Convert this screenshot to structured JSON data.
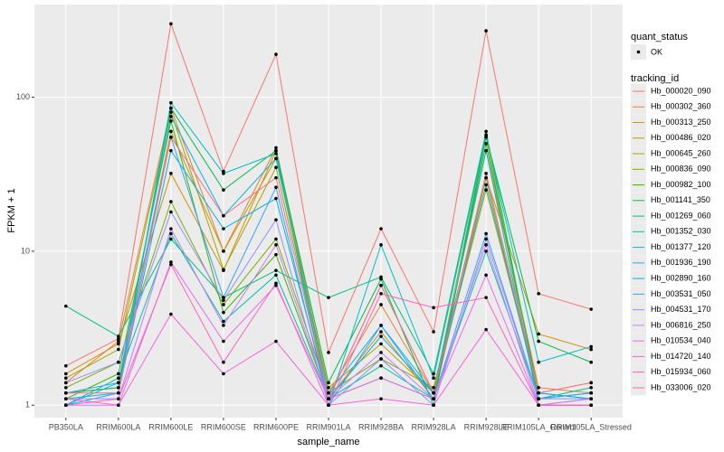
{
  "chart_data": {
    "type": "line",
    "x_label": "sample_name",
    "y_label": "FPKM + 1",
    "categories": [
      "PB350LA",
      "RRIM600LA",
      "RRIM600LE",
      "RRIM600SE",
      "RRIM600PE",
      "RRIM901LA",
      "RRIM928BA",
      "RRIM928LA",
      "RRIM928LE",
      "RRIM105LA_Control",
      "RRIM105LA_Stressed"
    ],
    "log_y": true,
    "grid": true,
    "ylim": [
      0.83,
      400
    ],
    "yticks": [
      1,
      10,
      100
    ],
    "legend_position": "right",
    "legend": {
      "shape_title": "quant_status",
      "shape_label": "OK",
      "color_title": "tracking_id"
    },
    "series": [
      {
        "name": "Hb_000020_090",
        "color": "#F8766D",
        "values": [
          1.8,
          2.7,
          300,
          33,
          190,
          2.2,
          14,
          3.0,
          270,
          5.3,
          4.2
        ]
      },
      {
        "name": "Hb_000302_360",
        "color": "#EA8331",
        "values": [
          1.4,
          2.6,
          85,
          10,
          47,
          1.2,
          4.5,
          1.2,
          45,
          1.3,
          1.2
        ]
      },
      {
        "name": "Hb_000313_250",
        "color": "#D89000",
        "values": [
          1.6,
          2.5,
          32,
          7.5,
          45,
          1.1,
          3.0,
          1.1,
          30,
          2.9,
          2.3
        ]
      },
      {
        "name": "Hb_000486_020",
        "color": "#C09B00",
        "values": [
          1.2,
          1.3,
          60,
          10,
          40,
          1.3,
          2.5,
          1.2,
          25,
          1.2,
          1.4
        ]
      },
      {
        "name": "Hb_000645_260",
        "color": "#A3A500",
        "values": [
          1.5,
          2.3,
          80,
          7.6,
          35,
          1.1,
          6.0,
          1.2,
          55,
          1.0,
          1.0
        ]
      },
      {
        "name": "Hb_000836_090",
        "color": "#7CAE00",
        "values": [
          1.3,
          1.9,
          21,
          4.5,
          12,
          1.2,
          2.0,
          1.3,
          30,
          1.1,
          1.2
        ]
      },
      {
        "name": "Hb_000982_100",
        "color": "#39B600",
        "values": [
          1.1,
          1.6,
          70,
          4.0,
          9.5,
          1.1,
          1.5,
          1.1,
          50,
          1.2,
          1.1
        ]
      },
      {
        "name": "Hb_001141_350",
        "color": "#00BB4E",
        "values": [
          1.2,
          1.3,
          85,
          25,
          45,
          1.4,
          6.6,
          1.0,
          56,
          2.6,
          1.9
        ]
      },
      {
        "name": "Hb_001269_060",
        "color": "#00BF7D",
        "values": [
          4.4,
          2.8,
          12,
          5.0,
          7.5,
          5.0,
          6.8,
          1.6,
          60,
          1.1,
          1.3
        ]
      },
      {
        "name": "Hb_001352_030",
        "color": "#00C1A3",
        "values": [
          1.0,
          1.5,
          13,
          3.5,
          7.0,
          1.1,
          1.8,
          1.1,
          10,
          1.1,
          1.2
        ]
      },
      {
        "name": "Hb_001377_120",
        "color": "#00BFC4",
        "values": [
          1.1,
          1.2,
          92,
          32,
          43,
          1.0,
          11,
          1.5,
          57,
          1.9,
          2.4
        ]
      },
      {
        "name": "Hb_001936_190",
        "color": "#00BAE0",
        "values": [
          1.0,
          1.4,
          75,
          17,
          40,
          1.2,
          3.3,
          1.2,
          45,
          1.0,
          1.1
        ]
      },
      {
        "name": "Hb_002890_160",
        "color": "#00B0F6",
        "values": [
          1.0,
          1.2,
          45,
          14,
          22,
          1.1,
          2.8,
          1.2,
          27,
          1.2,
          1.1
        ]
      },
      {
        "name": "Hb_003531_050",
        "color": "#35A2FF",
        "values": [
          1.2,
          1.4,
          55,
          5.0,
          26,
          1.0,
          3.3,
          1.1,
          13,
          1.1,
          1.2
        ]
      },
      {
        "name": "Hb_004531_170",
        "color": "#9590FF",
        "values": [
          1.4,
          1.9,
          18,
          4.8,
          16,
          1.0,
          2.0,
          1.0,
          12,
          1.1,
          1.1
        ]
      },
      {
        "name": "Hb_006816_250",
        "color": "#C77CFF",
        "values": [
          1.1,
          1.1,
          14,
          3.3,
          11,
          1.1,
          2.2,
          1.1,
          11,
          1.0,
          1.0
        ]
      },
      {
        "name": "Hb_010534_040",
        "color": "#E76BF3",
        "values": [
          1.0,
          1.0,
          8.5,
          2.6,
          6.0,
          1.1,
          1.5,
          1.1,
          7.0,
          1.0,
          1.1
        ]
      },
      {
        "name": "Hb_014720_140",
        "color": "#FA62DB",
        "values": [
          1.1,
          1.0,
          3.9,
          1.6,
          2.6,
          1.0,
          1.1,
          1.0,
          3.1,
          1.0,
          1.0
        ]
      },
      {
        "name": "Hb_015934_060",
        "color": "#FF62BC",
        "values": [
          1.0,
          1.1,
          8.2,
          1.9,
          6.2,
          1.0,
          5.3,
          4.3,
          5.0,
          1.0,
          1.0
        ]
      },
      {
        "name": "Hb_033006_020",
        "color": "#FF6C91",
        "values": [
          1.2,
          1.2,
          55,
          17,
          30,
          1.1,
          6.0,
          1.2,
          32,
          1.2,
          1.4
        ]
      }
    ]
  }
}
